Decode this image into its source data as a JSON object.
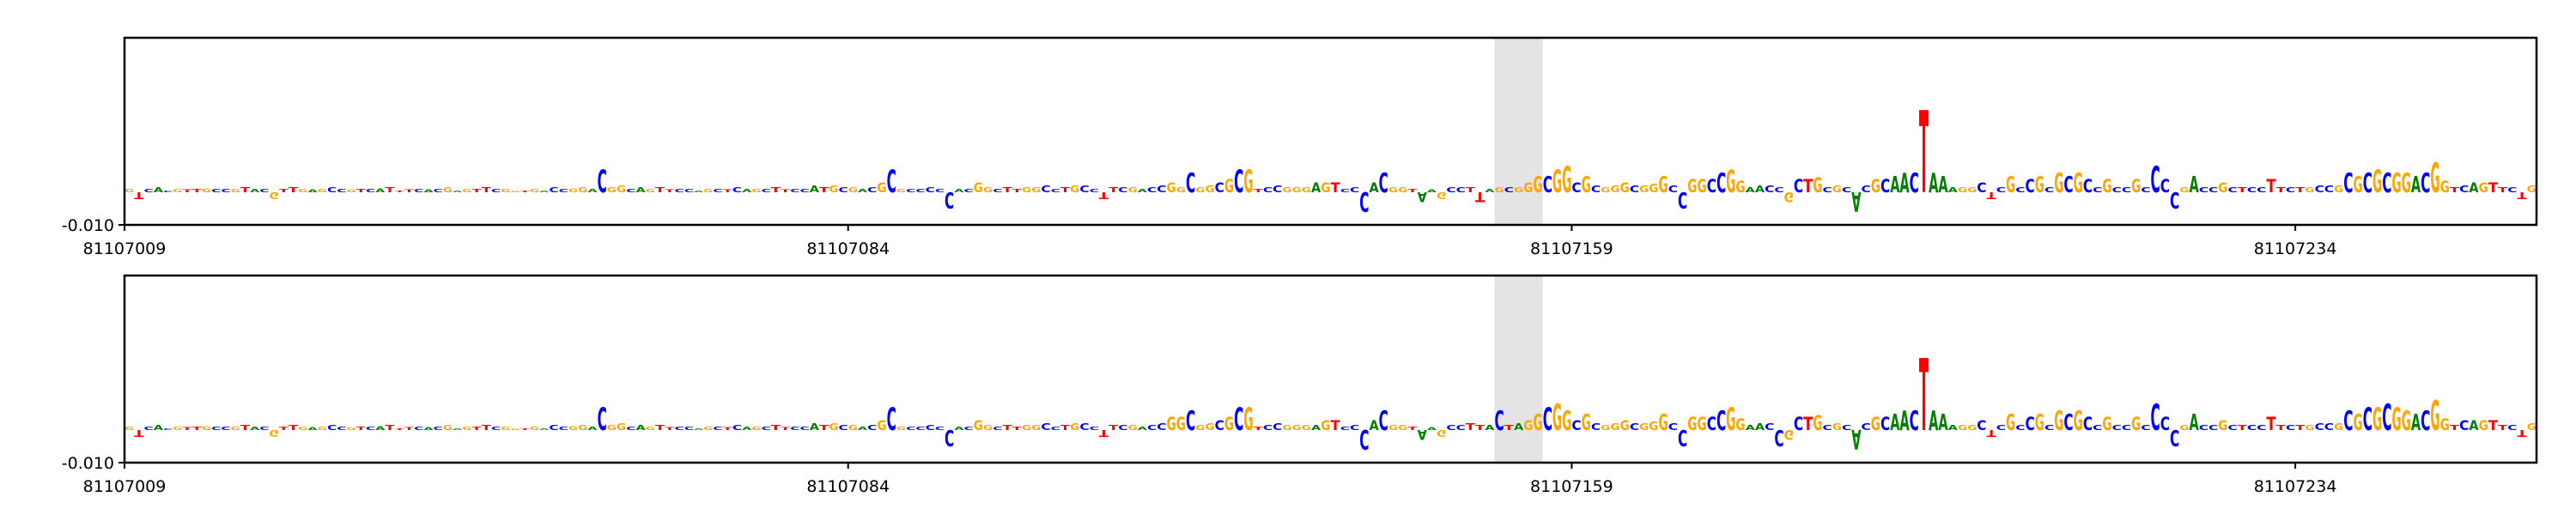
{
  "chart_data": [
    {
      "type": "logo",
      "xlim": [
        81107009,
        81107259
      ],
      "xticks": [
        81107009,
        81107084,
        81107159,
        81107234
      ],
      "ylim": [
        -0.01,
        0.047
      ],
      "yticks": [
        {
          "value": -0.01,
          "label": "-0.010"
        }
      ],
      "highlight": [
        81107151,
        81107156
      ],
      "colors": {
        "A": "#008000",
        "C": "#0000ff",
        "G": "#ffa500",
        "T": "#ff0000"
      },
      "sequence": [
        "G",
        "T",
        "C",
        "A",
        "C",
        "G",
        "T",
        "T",
        "G",
        "C",
        "C",
        "G",
        "T",
        "A",
        "C",
        "G",
        "T",
        "T",
        "G",
        "A",
        "G",
        "C",
        "C",
        "G",
        "T",
        "C",
        "A",
        "T",
        "T",
        "T",
        "C",
        "A",
        "C",
        "G",
        "A",
        "G",
        "T",
        "T",
        "C",
        "G",
        "G",
        "T",
        "G",
        "A",
        "C",
        "C",
        "G",
        "G",
        "A",
        "C",
        "G",
        "G",
        "C",
        "A",
        "G",
        "T",
        "T",
        "C",
        "C",
        "A",
        "G",
        "C",
        "T",
        "C",
        "A",
        "G",
        "C",
        "T",
        "T",
        "C",
        "C",
        "A",
        "T",
        "G",
        "C",
        "G",
        "A",
        "C",
        "G",
        "C",
        "G",
        "C",
        "C",
        "C",
        "C",
        "C",
        "A",
        "C",
        "G",
        "G",
        "C",
        "T",
        "T",
        "G",
        "G",
        "C",
        "C",
        "T",
        "G",
        "C",
        "C",
        "T",
        "T",
        "C",
        "G",
        "A",
        "C",
        "C",
        "G",
        "G",
        "C",
        "G",
        "G",
        "C",
        "G",
        "C",
        "G",
        "T",
        "C",
        "C",
        "G",
        "G",
        "G",
        "A",
        "G",
        "T",
        "C",
        "C",
        "C",
        "A",
        "C",
        "G",
        "G",
        "T",
        "A",
        "A",
        "G",
        "C",
        "C",
        "T",
        "T",
        "A",
        "G",
        "C",
        "G",
        "G",
        "G",
        "C",
        "G",
        "G",
        "C",
        "G",
        "C",
        "G",
        "G",
        "G",
        "C",
        "G",
        "G",
        "G",
        "C",
        "C",
        "G",
        "G",
        "C",
        "C",
        "G",
        "G",
        "A",
        "A",
        "C",
        "C",
        "G",
        "C",
        "T",
        "G",
        "C",
        "G",
        "C",
        "A",
        "C",
        "G",
        "C",
        "A",
        "A",
        "C",
        "T",
        "A",
        "A",
        "A",
        "G",
        "G",
        "C",
        "T",
        "C",
        "G",
        "C",
        "C",
        "G",
        "C",
        "G",
        "C",
        "G",
        "C",
        "C",
        "G",
        "C",
        "C",
        "G",
        "C",
        "C",
        "C",
        "C",
        "G",
        "A",
        "C",
        "C",
        "G",
        "C",
        "T",
        "C",
        "C",
        "T",
        "T",
        "C",
        "T",
        "G",
        "C",
        "C",
        "G",
        "C",
        "G",
        "C",
        "G",
        "C",
        "G",
        "G",
        "A",
        "C",
        "G",
        "G",
        "T",
        "C",
        "A",
        "G",
        "T",
        "T",
        "C",
        "T",
        "G"
      ],
      "values": [
        0.001,
        -0.002,
        0.001,
        0.0015,
        0.0005,
        0.001,
        0.0008,
        0.001,
        0.0012,
        0.001,
        0.001,
        0.001,
        0.0015,
        0.001,
        0.001,
        -0.002,
        0.001,
        0.0015,
        0.001,
        0.0008,
        0.001,
        0.0015,
        0.001,
        0.0008,
        0.001,
        0.001,
        0.0012,
        0.0015,
        0.0005,
        0.0008,
        0.001,
        0.0008,
        0.001,
        0.0015,
        0.0005,
        0.001,
        0.001,
        0.0015,
        0.001,
        0.001,
        0.0005,
        0.0005,
        0.001,
        0.0005,
        0.0015,
        0.001,
        0.0012,
        0.0015,
        0.001,
        0.007,
        0.0015,
        0.002,
        0.001,
        0.0015,
        0.001,
        0.0015,
        0.0008,
        0.001,
        0.001,
        0.0005,
        0.001,
        0.001,
        0.0008,
        0.0015,
        0.001,
        0.001,
        0.001,
        0.0015,
        0.0008,
        0.001,
        0.001,
        0.002,
        0.0015,
        0.002,
        0.0015,
        0.0015,
        0.001,
        0.0015,
        0.003,
        0.007,
        0.001,
        0.001,
        0.001,
        0.0015,
        0.001,
        -0.005,
        0.001,
        0.001,
        0.003,
        0.0015,
        0.001,
        0.0015,
        0.001,
        0.0015,
        0.0015,
        0.002,
        0.001,
        0.0015,
        0.002,
        0.002,
        0.001,
        -0.002,
        0.0015,
        0.0015,
        0.0015,
        0.001,
        0.0015,
        0.002,
        0.003,
        0.0015,
        0.006,
        0.0015,
        0.002,
        0.003,
        0.004,
        0.007,
        0.007,
        0.001,
        0.0015,
        0.002,
        0.0015,
        0.0015,
        0.0015,
        0.003,
        0.003,
        0.003,
        0.001,
        0.0015,
        -0.006,
        0.003,
        0.006,
        0.0015,
        0.0015,
        0.001,
        -0.003,
        0.0008,
        -0.002,
        0.0015,
        0.0015,
        0.0015,
        -0.003,
        0.001,
        0.0015,
        0.0015,
        0.0015,
        0.003,
        0.005,
        0.005,
        0.007,
        0.008,
        0.003,
        0.005,
        0.002,
        0.0015,
        0.002,
        0.003,
        0.002,
        0.002,
        0.0025,
        0.005,
        0.002,
        -0.005,
        0.004,
        0.004,
        0.004,
        0.006,
        0.007,
        0.0035,
        0.0015,
        0.002,
        0.002,
        0.0015,
        -0.003,
        0.004,
        0.004,
        0.0045,
        0.0015,
        0.002,
        0.0015,
        -0.006,
        0.002,
        0.004,
        0.004,
        0.005,
        0.006,
        0.006,
        0.025,
        0.006,
        0.005,
        0.0015,
        0.0015,
        0.0015,
        0.003,
        -0.002,
        0.0015,
        0.005,
        0.0015,
        0.004,
        0.005,
        0.0015,
        0.006,
        0.005,
        0.006,
        0.004,
        0.0015,
        0.004,
        0.0015,
        0.0015,
        0.004,
        0.0015,
        0.008,
        0.004,
        -0.005,
        0.0015,
        0.005,
        0.0015,
        0.0015,
        0.003,
        0.0015,
        0.0015,
        0.0015,
        0.0015,
        0.004,
        0.0015,
        0.0015,
        0.0015,
        0.0015,
        0.002,
        0.002,
        0.002,
        0.006,
        0.005,
        0.006,
        0.007,
        0.006,
        0.006,
        0.006,
        0.005,
        0.006,
        0.009,
        0.0035,
        0.0015,
        0.002,
        0.003,
        0.003,
        0.003,
        0.0015,
        0.0015,
        -0.002,
        0.002
      ]
    },
    {
      "type": "logo",
      "xlim": [
        81107009,
        81107259
      ],
      "xticks": [
        81107009,
        81107084,
        81107159,
        81107234
      ],
      "ylim": [
        -0.01,
        0.047
      ],
      "yticks": [
        {
          "value": -0.01,
          "label": "-0.010"
        }
      ],
      "highlight": [
        81107151,
        81107156
      ],
      "colors": {
        "A": "#008000",
        "C": "#0000ff",
        "G": "#ffa500",
        "T": "#ff0000"
      },
      "sequence": [
        "G",
        "T",
        "C",
        "A",
        "C",
        "G",
        "T",
        "T",
        "G",
        "C",
        "C",
        "G",
        "T",
        "A",
        "C",
        "G",
        "T",
        "T",
        "G",
        "A",
        "G",
        "C",
        "C",
        "G",
        "T",
        "C",
        "A",
        "T",
        "T",
        "T",
        "C",
        "A",
        "C",
        "G",
        "A",
        "G",
        "T",
        "T",
        "C",
        "G",
        "G",
        "T",
        "G",
        "A",
        "C",
        "C",
        "G",
        "G",
        "A",
        "C",
        "G",
        "G",
        "C",
        "A",
        "G",
        "T",
        "T",
        "C",
        "C",
        "A",
        "G",
        "C",
        "T",
        "C",
        "A",
        "G",
        "C",
        "T",
        "T",
        "C",
        "C",
        "A",
        "T",
        "G",
        "C",
        "G",
        "A",
        "C",
        "G",
        "C",
        "G",
        "C",
        "C",
        "C",
        "C",
        "C",
        "A",
        "C",
        "G",
        "G",
        "C",
        "T",
        "T",
        "G",
        "G",
        "C",
        "C",
        "T",
        "G",
        "C",
        "C",
        "T",
        "T",
        "C",
        "G",
        "A",
        "C",
        "C",
        "G",
        "G",
        "C",
        "G",
        "G",
        "C",
        "G",
        "C",
        "G",
        "T",
        "C",
        "C",
        "G",
        "G",
        "G",
        "A",
        "G",
        "T",
        "C",
        "C",
        "C",
        "A",
        "C",
        "G",
        "G",
        "T",
        "A",
        "A",
        "G",
        "C",
        "C",
        "T",
        "T",
        "A",
        "C",
        "T",
        "A",
        "G",
        "G",
        "C",
        "G",
        "G",
        "C",
        "G",
        "C",
        "G",
        "G",
        "G",
        "C",
        "G",
        "G",
        "G",
        "C",
        "C",
        "G",
        "G",
        "C",
        "C",
        "G",
        "G",
        "A",
        "A",
        "C",
        "C",
        "G",
        "C",
        "T",
        "G",
        "C",
        "G",
        "C",
        "A",
        "C",
        "G",
        "C",
        "A",
        "A",
        "C",
        "T",
        "A",
        "A",
        "A",
        "G",
        "G",
        "C",
        "T",
        "C",
        "G",
        "C",
        "C",
        "G",
        "C",
        "G",
        "C",
        "G",
        "C",
        "C",
        "G",
        "C",
        "C",
        "G",
        "C",
        "C",
        "C",
        "C",
        "G",
        "A",
        "C",
        "C",
        "G",
        "C",
        "T",
        "C",
        "C",
        "T",
        "T",
        "C",
        "T",
        "G",
        "C",
        "C",
        "G",
        "C",
        "G",
        "C",
        "G",
        "C",
        "G",
        "G",
        "A",
        "C",
        "G",
        "G",
        "T",
        "C",
        "A",
        "G",
        "T",
        "T",
        "C",
        "T",
        "G"
      ],
      "values": [
        0.001,
        -0.002,
        0.001,
        0.0015,
        0.0005,
        0.001,
        0.0008,
        0.001,
        0.0012,
        0.001,
        0.001,
        0.001,
        0.0015,
        0.001,
        0.001,
        -0.002,
        0.001,
        0.0015,
        0.001,
        0.0008,
        0.001,
        0.0015,
        0.001,
        0.0008,
        0.001,
        0.001,
        0.0012,
        0.0015,
        0.0005,
        0.0008,
        0.001,
        0.0008,
        0.001,
        0.0015,
        0.0005,
        0.001,
        0.001,
        0.0015,
        0.001,
        0.001,
        0.0005,
        0.0005,
        0.001,
        0.0005,
        0.0015,
        0.001,
        0.0012,
        0.0015,
        0.001,
        0.007,
        0.0015,
        0.002,
        0.001,
        0.0015,
        0.001,
        0.0015,
        0.0008,
        0.001,
        0.001,
        0.0005,
        0.001,
        0.001,
        0.0008,
        0.0015,
        0.001,
        0.001,
        0.001,
        0.0015,
        0.0008,
        0.001,
        0.001,
        0.002,
        0.0015,
        0.002,
        0.0015,
        0.0015,
        0.001,
        0.0015,
        0.003,
        0.007,
        0.001,
        0.001,
        0.001,
        0.0015,
        0.001,
        -0.005,
        0.001,
        0.001,
        0.003,
        0.0015,
        0.001,
        0.0015,
        0.001,
        0.0015,
        0.0015,
        0.002,
        0.001,
        0.0015,
        0.002,
        0.002,
        0.001,
        -0.002,
        0.0015,
        0.0015,
        0.0015,
        0.001,
        0.0015,
        0.002,
        0.004,
        0.004,
        0.006,
        0.0015,
        0.002,
        0.003,
        0.004,
        0.007,
        0.007,
        0.001,
        0.0015,
        0.002,
        0.0015,
        0.0015,
        0.0015,
        0.0015,
        0.003,
        0.003,
        0.001,
        0.0015,
        -0.006,
        0.003,
        0.006,
        0.0015,
        0.0015,
        0.001,
        -0.003,
        0.0008,
        -0.002,
        0.0015,
        0.0015,
        0.002,
        0.0015,
        0.0015,
        0.006,
        0.0015,
        0.002,
        0.003,
        0.005,
        0.007,
        0.008,
        0.006,
        0.003,
        0.005,
        0.002,
        0.0015,
        0.002,
        0.003,
        0.002,
        0.002,
        0.0025,
        0.005,
        0.002,
        -0.005,
        0.004,
        0.004,
        0.004,
        0.006,
        0.007,
        0.0035,
        0.0015,
        0.002,
        0.002,
        -0.005,
        -0.003,
        0.004,
        0.004,
        0.0045,
        0.0015,
        0.002,
        0.0015,
        -0.006,
        0.002,
        0.004,
        0.004,
        0.005,
        0.006,
        0.006,
        0.022,
        0.006,
        0.005,
        0.0015,
        0.0015,
        0.0015,
        0.003,
        -0.002,
        0.0015,
        0.005,
        0.0015,
        0.004,
        0.005,
        0.0015,
        0.006,
        0.005,
        0.006,
        0.004,
        0.0015,
        0.004,
        0.0015,
        0.0015,
        0.004,
        0.0015,
        0.008,
        0.004,
        -0.005,
        0.0015,
        0.005,
        0.0015,
        0.0015,
        0.003,
        0.0015,
        0.0015,
        0.0015,
        0.0015,
        0.004,
        0.0015,
        0.0015,
        0.0015,
        0.0015,
        0.002,
        0.002,
        0.002,
        0.006,
        0.005,
        0.007,
        0.007,
        0.008,
        0.007,
        0.006,
        0.005,
        0.006,
        0.009,
        0.0035,
        0.0015,
        0.003,
        0.003,
        0.003,
        0.003,
        0.0015,
        0.0015,
        -0.002,
        0.002
      ]
    }
  ]
}
